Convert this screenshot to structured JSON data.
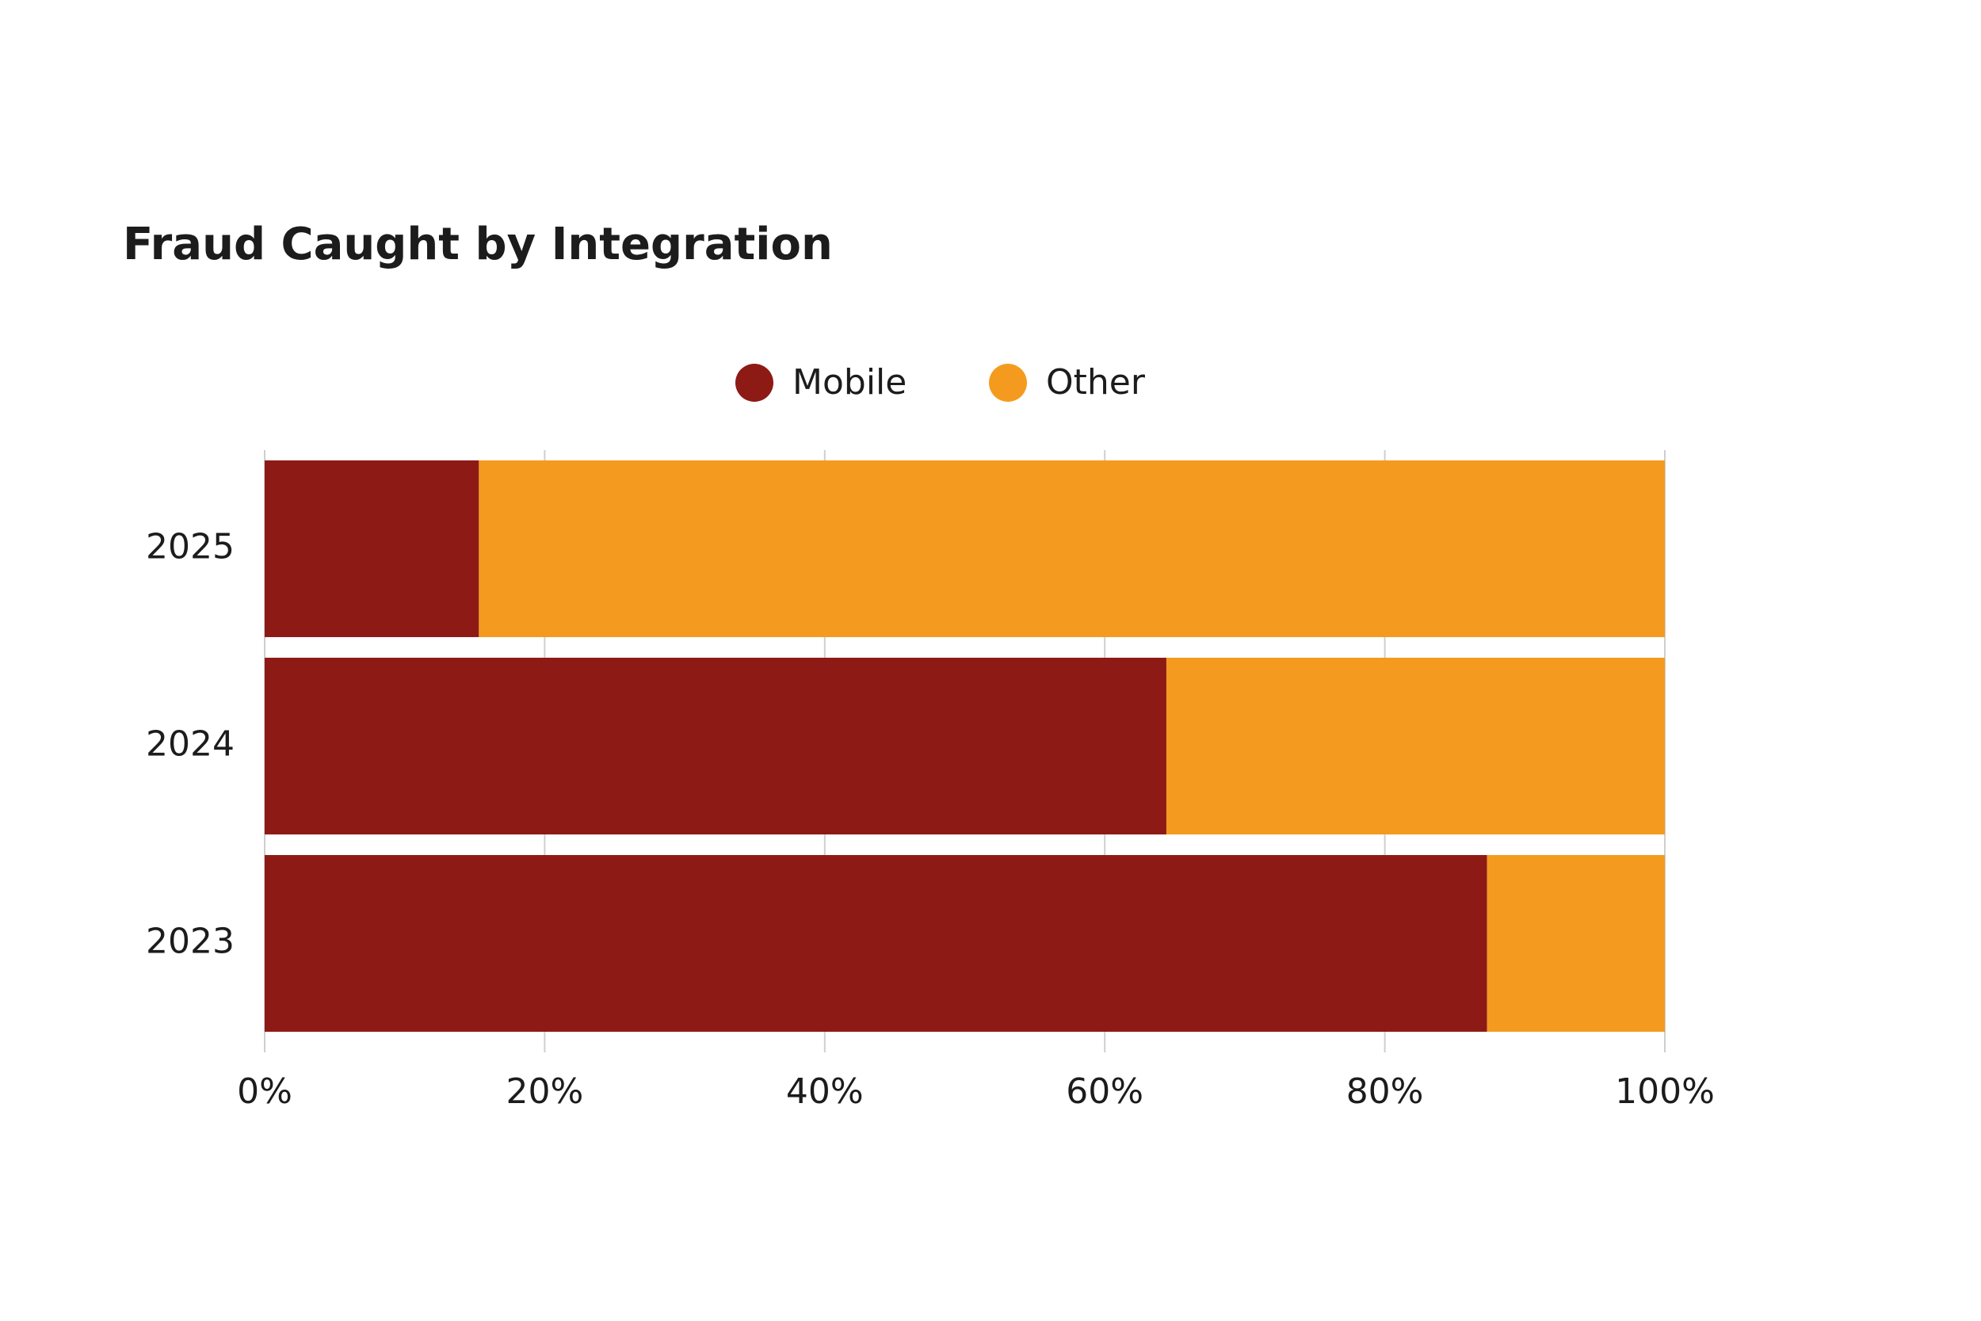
{
  "chart_data": {
    "type": "stacked-bar-horizontal",
    "title": "Fraud Caught by Integration",
    "categories": [
      "2025",
      "2024",
      "2023"
    ],
    "series": [
      {
        "name": "Mobile",
        "color": "#8e1a16",
        "values": [
          15.3,
          64.4,
          87.3
        ]
      },
      {
        "name": "Other",
        "color": "#f49b1f",
        "values": [
          84.7,
          35.6,
          12.7
        ]
      }
    ],
    "xlim": [
      0,
      100
    ],
    "xticks": [
      {
        "value": 0,
        "label": "0%"
      },
      {
        "value": 20,
        "label": "20%"
      },
      {
        "value": 40,
        "label": "40%"
      },
      {
        "value": 60,
        "label": "60%"
      },
      {
        "value": 80,
        "label": "80%"
      },
      {
        "value": 100,
        "label": "100%"
      }
    ],
    "grid": true
  }
}
